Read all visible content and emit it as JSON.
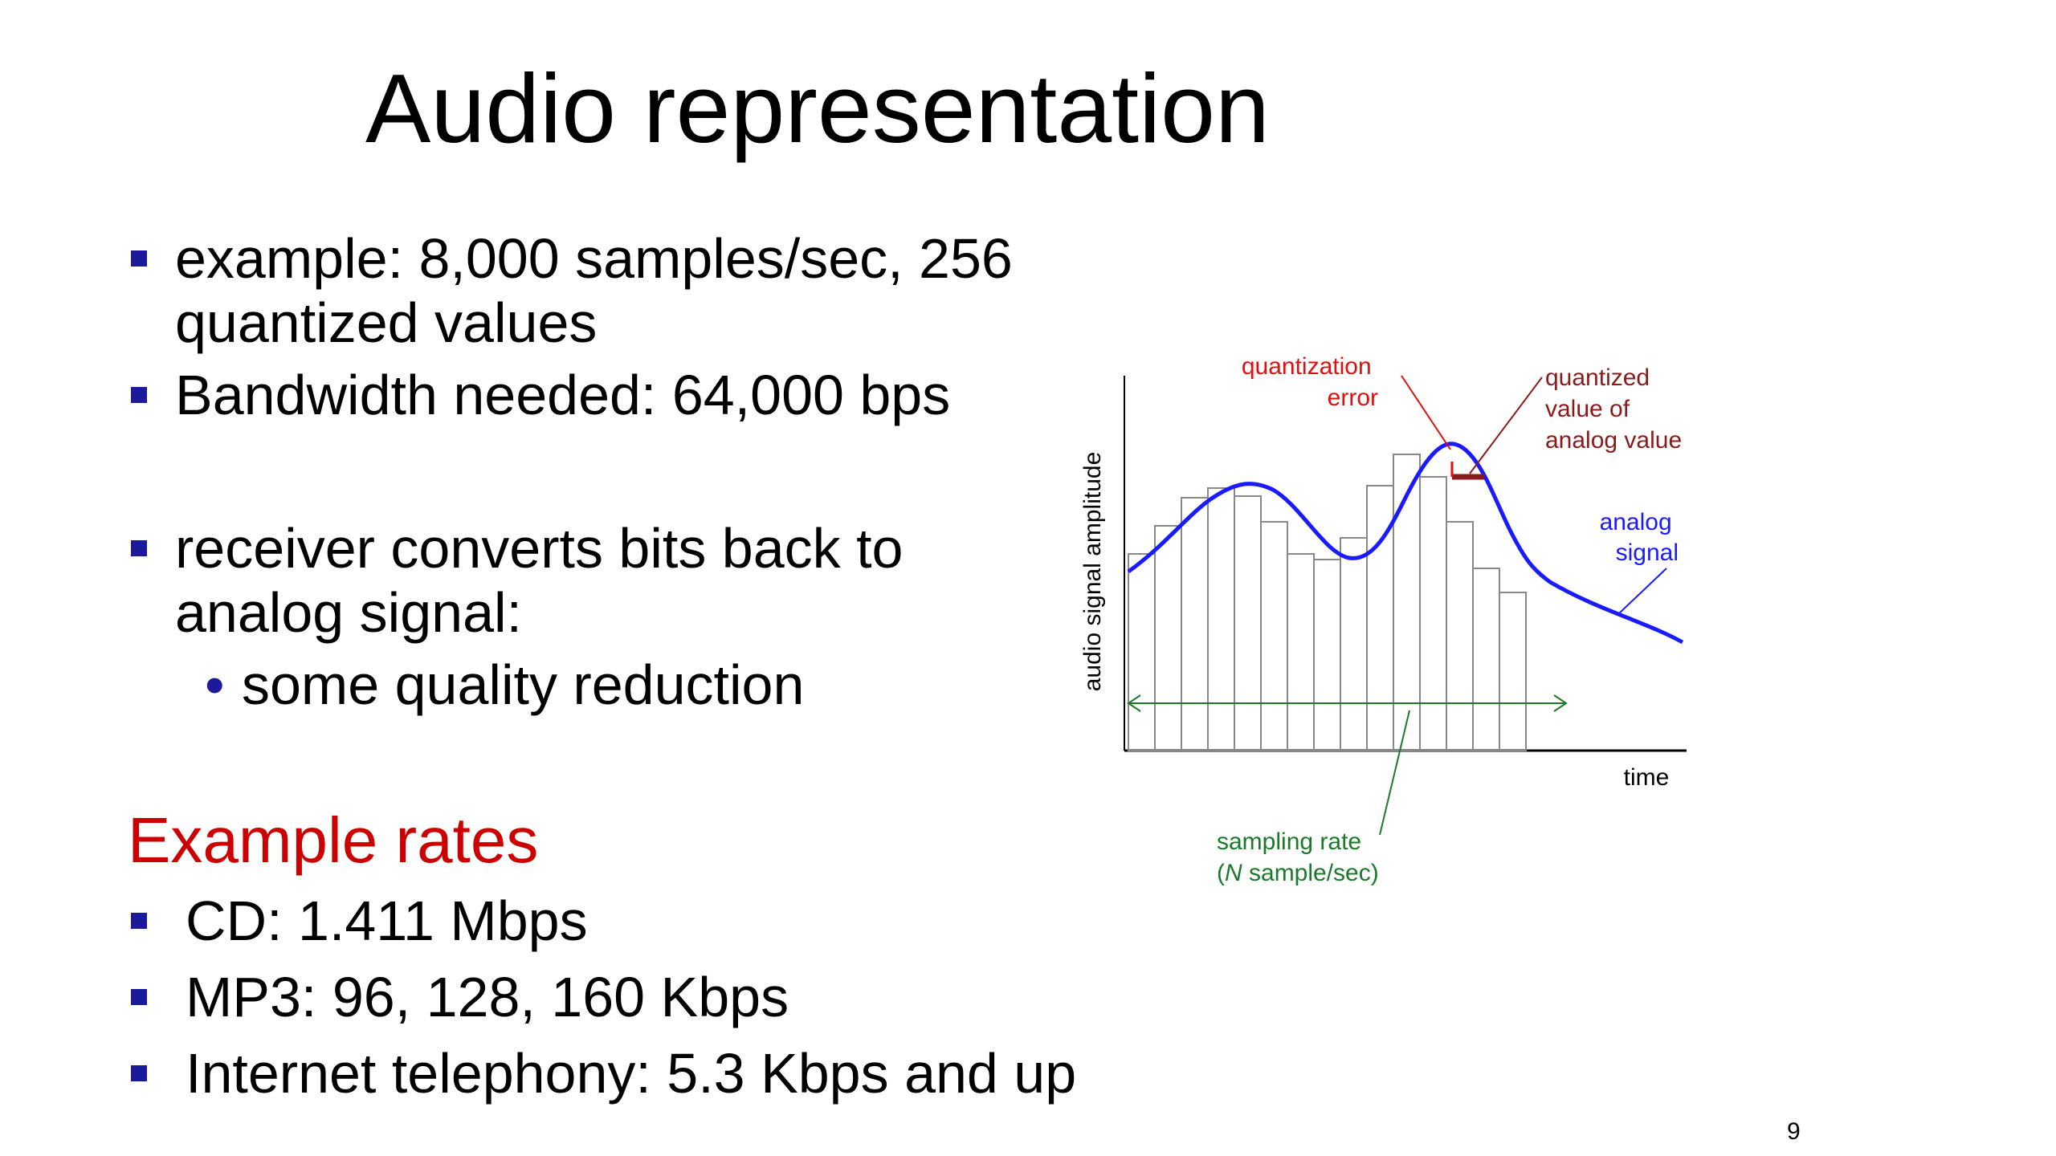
{
  "slide": {
    "title": "Audio representation",
    "page_number": "9"
  },
  "bullets": [
    {
      "text": "example: 8,000 samples/sec, 256 quantized values"
    },
    {
      "text": "Bandwidth needed: 64,000 bps"
    },
    {
      "text": "receiver converts bits back to analog signal:"
    }
  ],
  "sub_bullets": [
    {
      "text": "some quality reduction"
    }
  ],
  "rates": {
    "heading": "Example rates",
    "items": [
      {
        "text": "CD: 1.411 Mbps"
      },
      {
        "text": "MP3: 96, 128, 160 Kbps"
      },
      {
        "text": "Internet telephony: 5.3 Kbps and up"
      }
    ]
  },
  "diagram": {
    "y_axis_label": "audio signal amplitude",
    "x_axis_label": "time",
    "quantization_error_line1": "quantization",
    "quantization_error_line2": "error",
    "quantized_value_line1": "quantized",
    "quantized_value_line2": "value of",
    "quantized_value_line3": "analog value",
    "analog_signal_line1": "analog",
    "analog_signal_line2": "signal",
    "sampling_rate_line1": "sampling rate",
    "sampling_rate_line2_italic": "N",
    "sampling_rate_line2_rest": " sample/sec)",
    "sampling_rate_line2_open": "(",
    "colors": {
      "analog_signal": "#1a1aff",
      "quantization_error": "#e01010",
      "quantized_value": "#8b1a1a",
      "sampling_rate": "#1a7a2a",
      "sample_bar": "#888888"
    }
  }
}
